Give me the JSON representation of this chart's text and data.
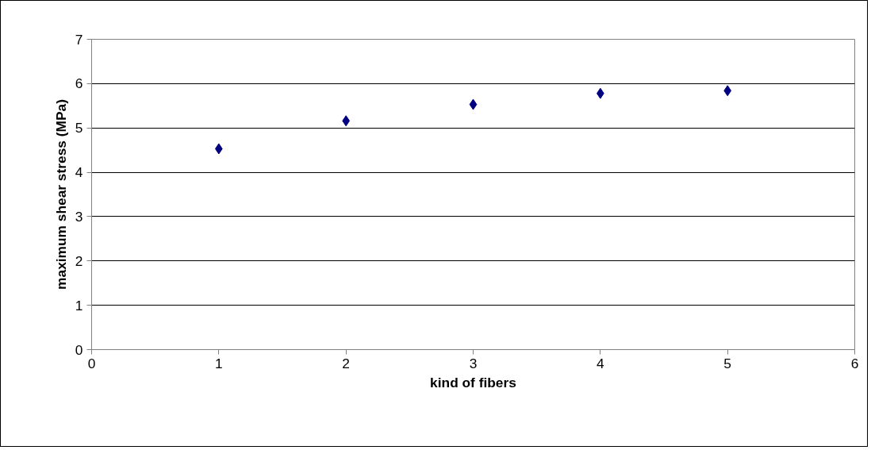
{
  "chart_data": {
    "type": "scatter",
    "xlabel": "kind of fibers",
    "ylabel": "maximum shear stress (MPa)",
    "x": [
      1,
      2,
      3,
      4,
      5
    ],
    "series": [
      {
        "color": "#000080",
        "values": [
          4.53,
          5.16,
          5.53,
          5.78,
          5.84
        ]
      }
    ],
    "xlim": [
      0,
      6
    ],
    "xticks": [
      0,
      1,
      2,
      3,
      4,
      5,
      6
    ],
    "ylim": [
      0,
      7
    ],
    "yticks": [
      0,
      1,
      2,
      3,
      4,
      5,
      6,
      7
    ],
    "grid": "y",
    "marker": "diamond"
  }
}
